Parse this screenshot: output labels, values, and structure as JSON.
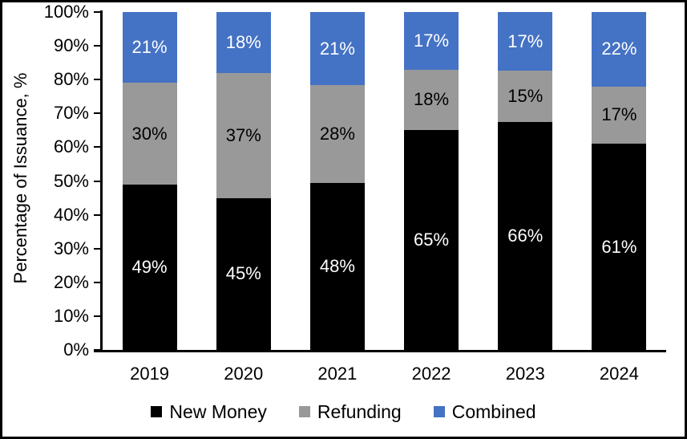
{
  "chart_data": {
    "type": "bar",
    "stacked": true,
    "percent_stacked": true,
    "title": "",
    "xlabel": "",
    "ylabel": "Percentage of Issuance, %",
    "ylim": [
      0,
      100
    ],
    "ytick_step": 10,
    "ytick_suffix": "%",
    "grid": false,
    "legend_position": "bottom",
    "categories": [
      "2019",
      "2020",
      "2021",
      "2022",
      "2023",
      "2024"
    ],
    "series": [
      {
        "name": "New Money",
        "color": "#000000",
        "label_color": "#FFFFFF",
        "values": [
          49,
          45,
          48,
          65,
          66,
          61
        ],
        "labels": [
          "49%",
          "45%",
          "48%",
          "65%",
          "66%",
          "61%"
        ]
      },
      {
        "name": "Refunding",
        "color": "#999999",
        "label_color": "#000000",
        "values": [
          30,
          37,
          28,
          18,
          15,
          17
        ],
        "labels": [
          "30%",
          "37%",
          "28%",
          "18%",
          "15%",
          "17%"
        ]
      },
      {
        "name": "Combined",
        "color": "#4472C4",
        "label_color": "#FFFFFF",
        "values": [
          21,
          18,
          21,
          17,
          17,
          22
        ],
        "labels": [
          "21%",
          "18%",
          "21%",
          "17%",
          "17%",
          "22%"
        ]
      }
    ]
  },
  "colors": {
    "axis": "#000000",
    "background": "#FFFFFF",
    "border": "#000000"
  }
}
